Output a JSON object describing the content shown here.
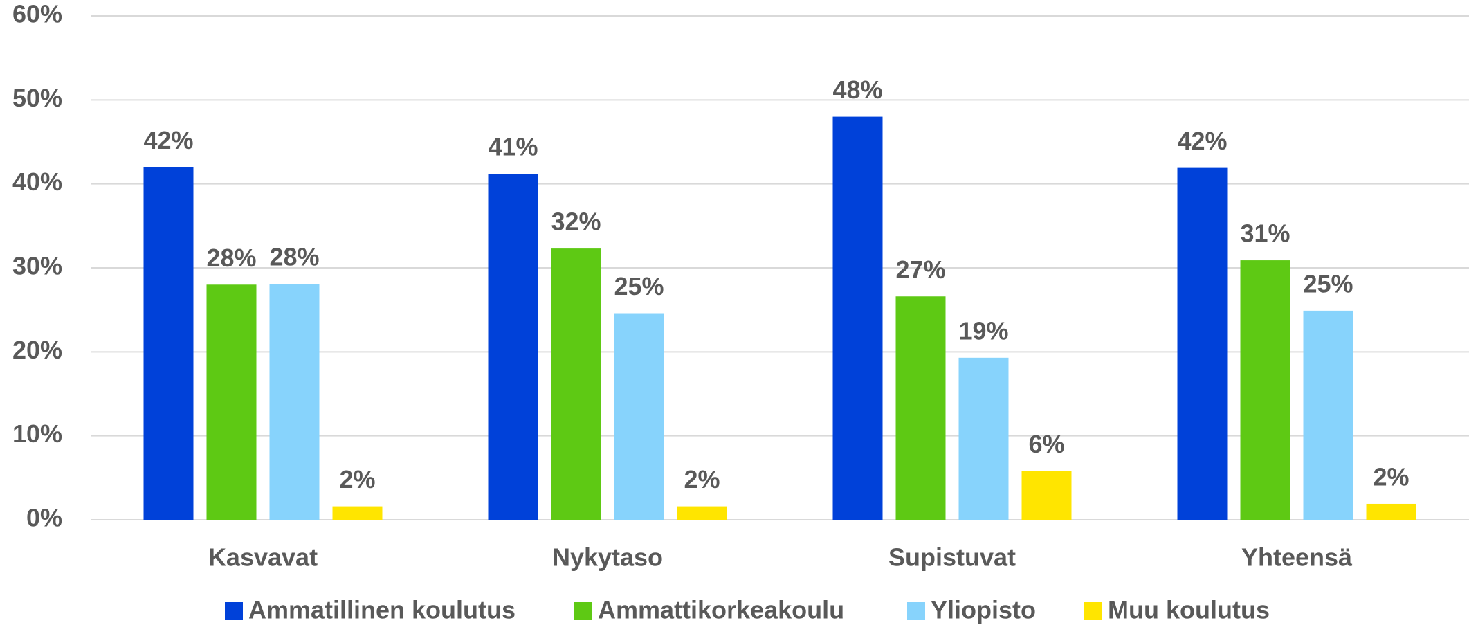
{
  "chart_data": {
    "type": "bar",
    "categories": [
      "Kasvavat",
      "Nykytaso",
      "Supistuvat",
      "Yhteensä"
    ],
    "series": [
      {
        "name": "Ammatillinen koulutus",
        "color": "#0041d9",
        "values": [
          42.0,
          41.2,
          48.0,
          41.9
        ],
        "value_labels": [
          "42%",
          "41%",
          "48%",
          "42%"
        ]
      },
      {
        "name": "Ammattikorkeakoulu",
        "color": "#5ec914",
        "values": [
          28.0,
          32.3,
          26.6,
          30.9
        ],
        "value_labels": [
          "28%",
          "32%",
          "27%",
          "31%"
        ]
      },
      {
        "name": "Yliopisto",
        "color": "#87d3fc",
        "values": [
          28.1,
          24.6,
          19.3,
          24.9
        ],
        "value_labels": [
          "28%",
          "25%",
          "19%",
          "25%"
        ]
      },
      {
        "name": "Muu koulutus",
        "color": "#ffe500",
        "values": [
          1.6,
          1.6,
          5.8,
          1.9
        ],
        "value_labels": [
          "2%",
          "2%",
          "6%",
          "2%"
        ]
      }
    ],
    "ylim": [
      0,
      60
    ],
    "yticks": [
      {
        "value": 0,
        "label": "0%"
      },
      {
        "value": 10,
        "label": "10%"
      },
      {
        "value": 20,
        "label": "20%"
      },
      {
        "value": 30,
        "label": "30%"
      },
      {
        "value": 40,
        "label": "40%"
      },
      {
        "value": 50,
        "label": "50%"
      },
      {
        "value": 60,
        "label": "60%"
      }
    ],
    "grid": true,
    "legend": "bottom"
  }
}
